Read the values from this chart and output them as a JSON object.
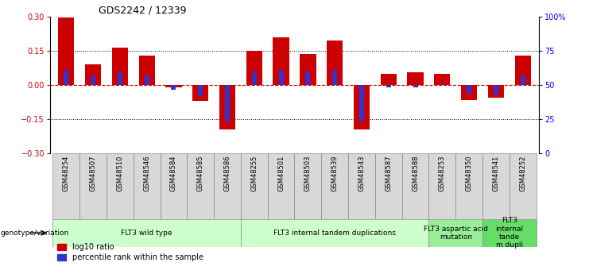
{
  "title": "GDS2242 / 12339",
  "samples": [
    "GSM48254",
    "GSM48507",
    "GSM48510",
    "GSM48546",
    "GSM48584",
    "GSM48585",
    "GSM48586",
    "GSM48255",
    "GSM48501",
    "GSM48503",
    "GSM48539",
    "GSM48543",
    "GSM48587",
    "GSM48588",
    "GSM48253",
    "GSM48350",
    "GSM48541",
    "GSM48252"
  ],
  "log10_ratio": [
    0.295,
    0.09,
    0.165,
    0.13,
    -0.01,
    -0.07,
    -0.195,
    0.15,
    0.21,
    0.135,
    0.195,
    -0.195,
    0.05,
    0.055,
    0.05,
    -0.065,
    -0.055,
    0.13
  ],
  "percentile_rank_offset": [
    0.065,
    0.04,
    0.055,
    0.045,
    -0.02,
    -0.05,
    -0.16,
    0.06,
    0.065,
    0.06,
    0.065,
    -0.16,
    -0.01,
    -0.01,
    0.005,
    -0.04,
    -0.045,
    0.04
  ],
  "bar_color_red": "#cc0000",
  "bar_color_blue": "#3333cc",
  "zero_line_color": "#cc0000",
  "dotted_line_color": "#000000",
  "ylim": [
    -0.3,
    0.3
  ],
  "yticks_left": [
    -0.3,
    -0.15,
    0.0,
    0.15,
    0.3
  ],
  "yticks_right_labels": [
    "0",
    "25",
    "50",
    "75",
    "100%"
  ],
  "groups": [
    {
      "label": "FLT3 wild type",
      "start": 0,
      "end": 7,
      "color": "#ccffcc"
    },
    {
      "label": "FLT3 internal tandem duplications",
      "start": 7,
      "end": 14,
      "color": "#ccffcc"
    },
    {
      "label": "FLT3 aspartic acid\nmutation",
      "start": 14,
      "end": 16,
      "color": "#99ee99"
    },
    {
      "label": "FLT3\ninternal\ntande\nm dupli",
      "start": 16,
      "end": 18,
      "color": "#66dd66"
    }
  ],
  "genotype_label": "genotype/variation",
  "legend_red": "log10 ratio",
  "legend_blue": "percentile rank within the sample",
  "bar_width": 0.6
}
